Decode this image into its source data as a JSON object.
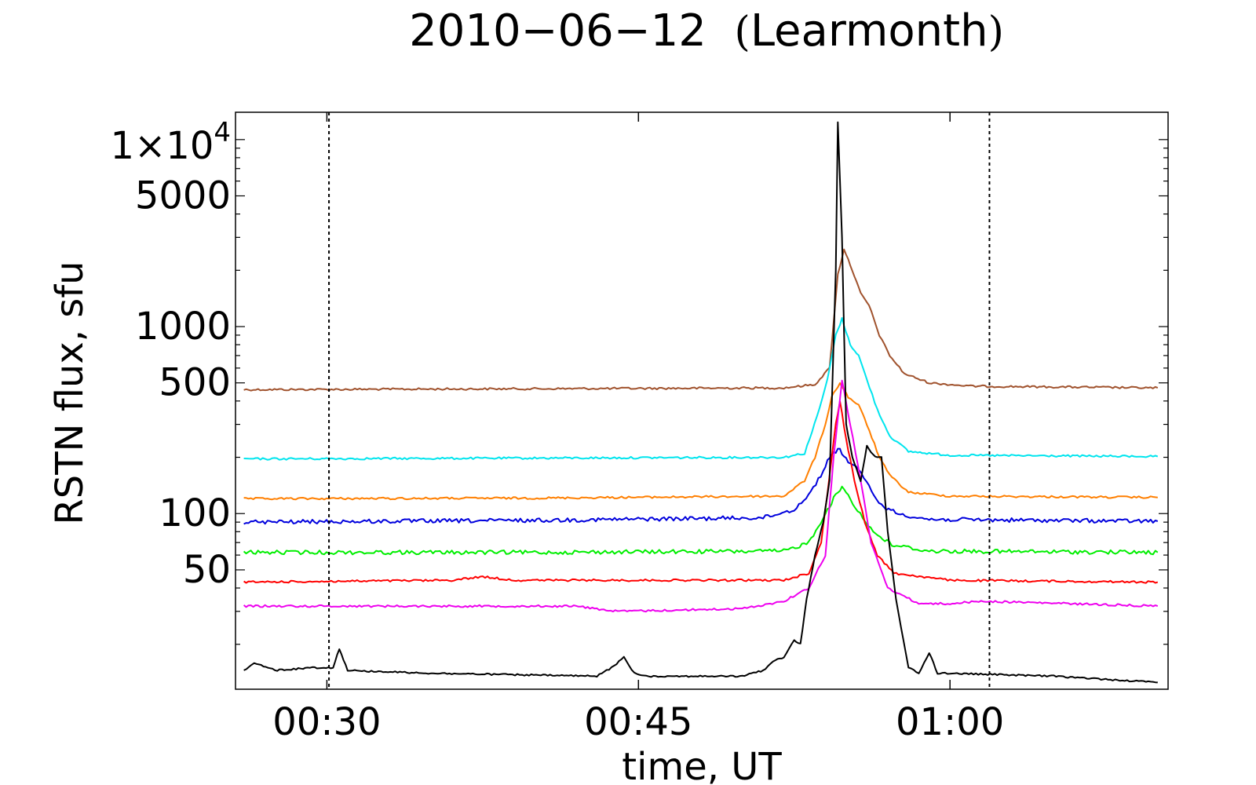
{
  "chart_data": {
    "type": "line",
    "title": "2010−06−12",
    "title_paren_open": "(",
    "title_station": "Learmonth",
    "title_paren_close": ")",
    "xlabel": "time, UT",
    "ylabel": "RSTN flux, sfu",
    "yscale": "log",
    "xlim": [
      "00:25.6",
      "01:10.5"
    ],
    "ylim": [
      11.5,
      14000
    ],
    "grid": false,
    "legend": "none",
    "x_ticks": [
      {
        "value": "00:30",
        "label": "00:30"
      },
      {
        "value": "00:45",
        "label": "00:45"
      },
      {
        "value": "01:00",
        "label": "01:00"
      }
    ],
    "y_ticks": [
      {
        "value": 50,
        "label": "50"
      },
      {
        "value": 100,
        "label": "100"
      },
      {
        "value": 500,
        "label": "500"
      },
      {
        "value": 1000,
        "label": "1000"
      },
      {
        "value": 5000,
        "label": "5000"
      },
      {
        "value": 10000,
        "label_mantissa": "1",
        "label_times": "×",
        "label_base": "10",
        "label_exp": "4"
      }
    ],
    "vertical_markers": [
      "00:30.1",
      "01:01.9"
    ],
    "series": [
      {
        "color": "#a0522d",
        "points": [
          [
            "00:26.0",
            460
          ],
          [
            "00:40.0",
            465
          ],
          [
            "00:52.0",
            470
          ],
          [
            "00:53.5",
            490
          ],
          [
            "00:54.2",
            600
          ],
          [
            "00:54.6",
            1900
          ],
          [
            "00:54.9",
            2600
          ],
          [
            "00:55.3",
            2000
          ],
          [
            "00:55.7",
            1500
          ],
          [
            "00:56.1",
            1300
          ],
          [
            "00:56.6",
            900
          ],
          [
            "00:57.1",
            700
          ],
          [
            "00:57.8",
            560
          ],
          [
            "00:59.0",
            500
          ],
          [
            "01:01.0",
            480
          ],
          [
            "01:10.0",
            470
          ]
        ]
      },
      {
        "color": "#00e5ee",
        "points": [
          [
            "00:26.0",
            196
          ],
          [
            "00:40.0",
            198
          ],
          [
            "00:52.0",
            200
          ],
          [
            "00:53.0",
            210
          ],
          [
            "00:53.6",
            330
          ],
          [
            "00:54.1",
            520
          ],
          [
            "00:54.5",
            900
          ],
          [
            "00:54.8",
            1100
          ],
          [
            "00:55.2",
            800
          ],
          [
            "00:55.6",
            700
          ],
          [
            "00:56.0",
            520
          ],
          [
            "00:56.5",
            360
          ],
          [
            "00:57.1",
            260
          ],
          [
            "00:58.0",
            215
          ],
          [
            "01:00.0",
            205
          ],
          [
            "01:10.0",
            202
          ]
        ]
      },
      {
        "color": "#ff7f00",
        "points": [
          [
            "00:26.0",
            120
          ],
          [
            "00:40.0",
            121
          ],
          [
            "00:52.0",
            124
          ],
          [
            "00:53.0",
            150
          ],
          [
            "00:53.5",
            200
          ],
          [
            "00:54.0",
            300
          ],
          [
            "00:54.3",
            420
          ],
          [
            "00:54.7",
            500
          ],
          [
            "00:55.1",
            420
          ],
          [
            "00:55.6",
            380
          ],
          [
            "00:56.0",
            300
          ],
          [
            "00:56.6",
            200
          ],
          [
            "00:57.1",
            160
          ],
          [
            "00:58.0",
            130
          ],
          [
            "01:00.0",
            124
          ],
          [
            "01:10.0",
            122
          ]
        ]
      },
      {
        "color": "#0000dd",
        "points": [
          [
            "00:26.0",
            90
          ],
          [
            "00:40.0",
            92
          ],
          [
            "00:51.0",
            95
          ],
          [
            "00:52.5",
            105
          ],
          [
            "00:53.3",
            130
          ],
          [
            "00:53.9",
            170
          ],
          [
            "00:54.3",
            210
          ],
          [
            "00:54.7",
            220
          ],
          [
            "00:55.1",
            190
          ],
          [
            "00:55.6",
            170
          ],
          [
            "00:56.1",
            140
          ],
          [
            "00:56.7",
            110
          ],
          [
            "00:57.5",
            100
          ],
          [
            "00:59.0",
            93
          ],
          [
            "01:10.0",
            91
          ]
        ]
      },
      {
        "color": "#00ee00",
        "points": [
          [
            "00:26.0",
            62
          ],
          [
            "00:40.0",
            62
          ],
          [
            "00:52.0",
            63
          ],
          [
            "00:53.2",
            70
          ],
          [
            "00:54.0",
            100
          ],
          [
            "00:54.4",
            120
          ],
          [
            "00:54.8",
            140
          ],
          [
            "00:55.2",
            120
          ],
          [
            "00:55.8",
            95
          ],
          [
            "00:56.3",
            80
          ],
          [
            "00:57.2",
            68
          ],
          [
            "00:59.0",
            63
          ],
          [
            "01:10.0",
            62
          ]
        ]
      },
      {
        "color": "#ff0000",
        "points": [
          [
            "00:26.0",
            43
          ],
          [
            "00:36.0",
            44
          ],
          [
            "00:37.5",
            46
          ],
          [
            "00:39.0",
            44
          ],
          [
            "00:52.0",
            44
          ],
          [
            "00:53.2",
            48
          ],
          [
            "00:53.8",
            70
          ],
          [
            "00:54.2",
            160
          ],
          [
            "00:54.5",
            300
          ],
          [
            "00:54.7",
            400
          ],
          [
            "00:55.0",
            250
          ],
          [
            "00:55.4",
            150
          ],
          [
            "00:55.9",
            90
          ],
          [
            "00:56.5",
            60
          ],
          [
            "00:57.3",
            48
          ],
          [
            "01:00.0",
            44
          ],
          [
            "01:10.0",
            43
          ]
        ]
      },
      {
        "color": "#ee00ee",
        "points": [
          [
            "00:26.0",
            32
          ],
          [
            "00:42.0",
            32
          ],
          [
            "00:44.0",
            30
          ],
          [
            "00:50.0",
            31
          ],
          [
            "00:52.0",
            34
          ],
          [
            "00:53.2",
            40
          ],
          [
            "00:54.0",
            60
          ],
          [
            "00:54.4",
            200
          ],
          [
            "00:54.8",
            520
          ],
          [
            "00:55.2",
            300
          ],
          [
            "00:55.7",
            150
          ],
          [
            "00:56.2",
            70
          ],
          [
            "00:57.0",
            40
          ],
          [
            "00:58.5",
            33
          ],
          [
            "01:00.0",
            33
          ],
          [
            "01:01.5",
            34
          ],
          [
            "01:10.0",
            32
          ]
        ]
      },
      {
        "color": "#000000",
        "points": [
          [
            "00:26.0",
            14.5
          ],
          [
            "00:26.5",
            16
          ],
          [
            "00:27.5",
            14.5
          ],
          [
            "00:29.3",
            15
          ],
          [
            "00:30.3",
            15
          ],
          [
            "00:30.6",
            19
          ],
          [
            "00:31.0",
            14.5
          ],
          [
            "00:35.0",
            14
          ],
          [
            "00:43.0",
            13.5
          ],
          [
            "00:43.7",
            15
          ],
          [
            "00:44.3",
            17
          ],
          [
            "00:44.8",
            14
          ],
          [
            "00:45.5",
            13.5
          ],
          [
            "00:50.0",
            13.5
          ],
          [
            "00:51.0",
            14.5
          ],
          [
            "00:51.6",
            16.5
          ],
          [
            "00:52.0",
            17
          ],
          [
            "00:52.5",
            21
          ],
          [
            "00:52.8",
            20
          ],
          [
            "00:53.1",
            35
          ],
          [
            "00:53.5",
            60
          ],
          [
            "00:53.9",
            90
          ],
          [
            "00:54.2",
            150
          ],
          [
            "00:54.5",
            2000
          ],
          [
            "00:54.6",
            12500
          ],
          [
            "00:54.8",
            3000
          ],
          [
            "00:55.0",
            300
          ],
          [
            "00:55.3",
            200
          ],
          [
            "00:55.7",
            150
          ],
          [
            "00:56.0",
            230
          ],
          [
            "00:56.4",
            200
          ],
          [
            "00:56.7",
            200
          ],
          [
            "00:57.0",
            80
          ],
          [
            "00:57.4",
            35
          ],
          [
            "00:58.0",
            15
          ],
          [
            "00:58.5",
            14
          ],
          [
            "00:59.0",
            18
          ],
          [
            "00:59.4",
            14
          ],
          [
            "01:00.0",
            14
          ],
          [
            "01:05.0",
            13.5
          ],
          [
            "01:10.0",
            12.5
          ]
        ]
      }
    ]
  }
}
